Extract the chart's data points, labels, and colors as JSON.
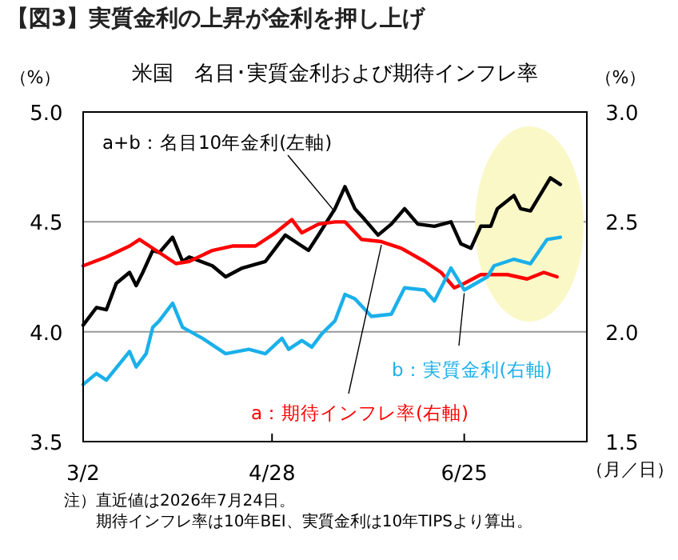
{
  "chart_data": {
    "type": "line",
    "title": "【図3】実質金利の上昇が金利を押し上げ",
    "subtitle": "米国　名目･実質金利および期待インフレ率",
    "xlabel": "（月／日）",
    "ylabel": "（%）",
    "y2label": "（%）",
    "xlim": [
      "2026-03-02",
      "2026-08-01"
    ],
    "xticks": [
      {
        "value": "2026-03-02",
        "label": "3/2"
      },
      {
        "value": "2026-04-28",
        "label": "4/28"
      },
      {
        "value": "2026-06-25",
        "label": "6/25"
      }
    ],
    "ylim": [
      3.5,
      5.0
    ],
    "yticks": [
      {
        "value": 3.5,
        "label": "3.5"
      },
      {
        "value": 4.0,
        "label": "4.0"
      },
      {
        "value": 4.5,
        "label": "4.5"
      },
      {
        "value": 5.0,
        "label": "5.0"
      }
    ],
    "y2lim": [
      1.5,
      3.0
    ],
    "y2ticks": [
      {
        "value": 1.5,
        "label": "1.5"
      },
      {
        "value": 2.0,
        "label": "2.0"
      },
      {
        "value": 2.5,
        "label": "2.5"
      },
      {
        "value": 3.0,
        "label": "3.0"
      }
    ],
    "grid": "y",
    "line_style": "solid",
    "marker": "none",
    "series": [
      {
        "name": "a+b：名目10年金利(左軸)",
        "color": "#000000",
        "x": [
          "2026-03-02",
          "2026-03-06",
          "2026-03-09",
          "2026-03-12",
          "2026-03-16",
          "2026-03-18",
          "2026-03-20",
          "2026-03-23",
          "2026-03-25",
          "2026-03-29",
          "2026-04-01",
          "2026-04-03",
          "2026-04-10",
          "2026-04-14",
          "2026-04-19",
          "2026-04-26",
          "2026-04-29",
          "2026-05-02",
          "2026-05-09",
          "2026-05-12",
          "2026-05-17",
          "2026-05-20",
          "2026-05-23",
          "2026-05-26",
          "2026-05-30",
          "2026-06-03",
          "2026-06-07",
          "2026-06-11",
          "2026-06-16",
          "2026-06-21",
          "2026-06-24",
          "2026-06-27",
          "2026-06-30",
          "2026-07-03",
          "2026-07-05",
          "2026-07-10",
          "2026-07-12",
          "2026-07-15",
          "2026-07-21",
          "2026-07-24"
        ],
        "values": [
          4.03,
          4.11,
          4.1,
          4.22,
          4.27,
          4.21,
          4.27,
          4.37,
          4.36,
          4.43,
          4.32,
          4.34,
          4.3,
          4.25,
          4.29,
          4.32,
          4.38,
          4.44,
          4.37,
          4.44,
          4.56,
          4.66,
          4.56,
          4.51,
          4.44,
          4.49,
          4.56,
          4.49,
          4.48,
          4.5,
          4.4,
          4.38,
          4.48,
          4.48,
          4.56,
          4.62,
          4.56,
          4.55,
          4.7,
          4.67
        ]
      },
      {
        "name": "a：期待インフレ率(右軸)",
        "color": "#ff0000",
        "axis": "y2",
        "x": [
          "2026-03-02",
          "2026-03-09",
          "2026-03-16",
          "2026-03-19",
          "2026-03-24",
          "2026-03-30",
          "2026-04-03",
          "2026-04-10",
          "2026-04-16",
          "2026-04-23",
          "2026-04-29",
          "2026-05-04",
          "2026-05-07",
          "2026-05-12",
          "2026-05-17",
          "2026-05-20",
          "2026-05-25",
          "2026-05-31",
          "2026-06-06",
          "2026-06-13",
          "2026-06-18",
          "2026-06-22",
          "2026-06-25",
          "2026-06-30",
          "2026-07-08",
          "2026-07-14",
          "2026-07-19",
          "2026-07-23"
        ],
        "values": [
          2.3,
          2.34,
          2.39,
          2.42,
          2.37,
          2.31,
          2.32,
          2.37,
          2.39,
          2.39,
          2.45,
          2.51,
          2.45,
          2.49,
          2.5,
          2.5,
          2.42,
          2.41,
          2.38,
          2.32,
          2.27,
          2.2,
          2.22,
          2.26,
          2.26,
          2.24,
          2.27,
          2.25
        ]
      },
      {
        "name": "b：実質金利(右軸)",
        "color": "#1ab0ea",
        "axis": "y2",
        "x": [
          "2026-03-02",
          "2026-03-06",
          "2026-03-09",
          "2026-03-16",
          "2026-03-18",
          "2026-03-21",
          "2026-03-23",
          "2026-03-25",
          "2026-03-29",
          "2026-04-01",
          "2026-04-07",
          "2026-04-14",
          "2026-04-21",
          "2026-04-26",
          "2026-05-01",
          "2026-05-03",
          "2026-05-07",
          "2026-05-10",
          "2026-05-13",
          "2026-05-17",
          "2026-05-20",
          "2026-05-23",
          "2026-05-28",
          "2026-06-03",
          "2026-06-07",
          "2026-06-13",
          "2026-06-16",
          "2026-06-21",
          "2026-06-25",
          "2026-07-02",
          "2026-07-04",
          "2026-07-10",
          "2026-07-15",
          "2026-07-20",
          "2026-07-24"
        ],
        "values": [
          1.76,
          1.81,
          1.78,
          1.91,
          1.84,
          1.9,
          2.02,
          2.05,
          2.13,
          2.02,
          1.97,
          1.9,
          1.92,
          1.9,
          1.97,
          1.92,
          1.96,
          1.93,
          1.99,
          2.05,
          2.17,
          2.15,
          2.07,
          2.08,
          2.2,
          2.19,
          2.14,
          2.29,
          2.19,
          2.25,
          2.3,
          2.33,
          2.31,
          2.42,
          2.43
        ]
      }
    ],
    "annotations": [
      "注）直近値は2026年7月24日。",
      "期待インフレ率は10年BEI、実質金利は10年TIPSより算出。"
    ]
  }
}
